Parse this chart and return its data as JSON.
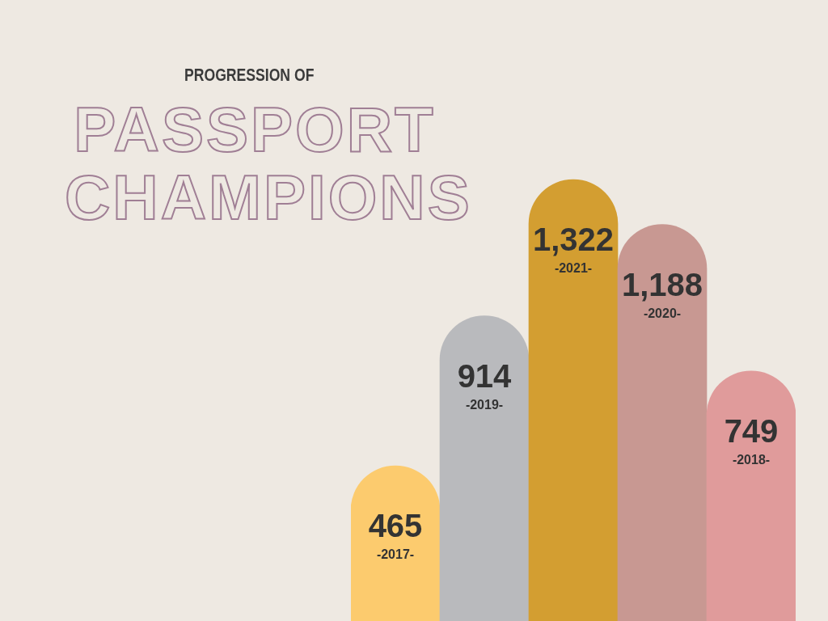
{
  "chart_data": {
    "type": "bar",
    "subtitle": "PROGRESSION OF",
    "title": "PASSPORT CHAMPIONS",
    "categories": [
      "-2017-",
      "-2019-",
      "-2021-",
      "-2020-",
      "-2018-"
    ],
    "values": [
      465,
      914,
      1322,
      1188,
      749
    ],
    "colors": [
      "#fccb6e",
      "#b9babd",
      "#d39e31",
      "#c89892",
      "#e09b9b"
    ],
    "value_labels": [
      "465",
      "914",
      "1,322",
      "1,188",
      "749"
    ]
  }
}
